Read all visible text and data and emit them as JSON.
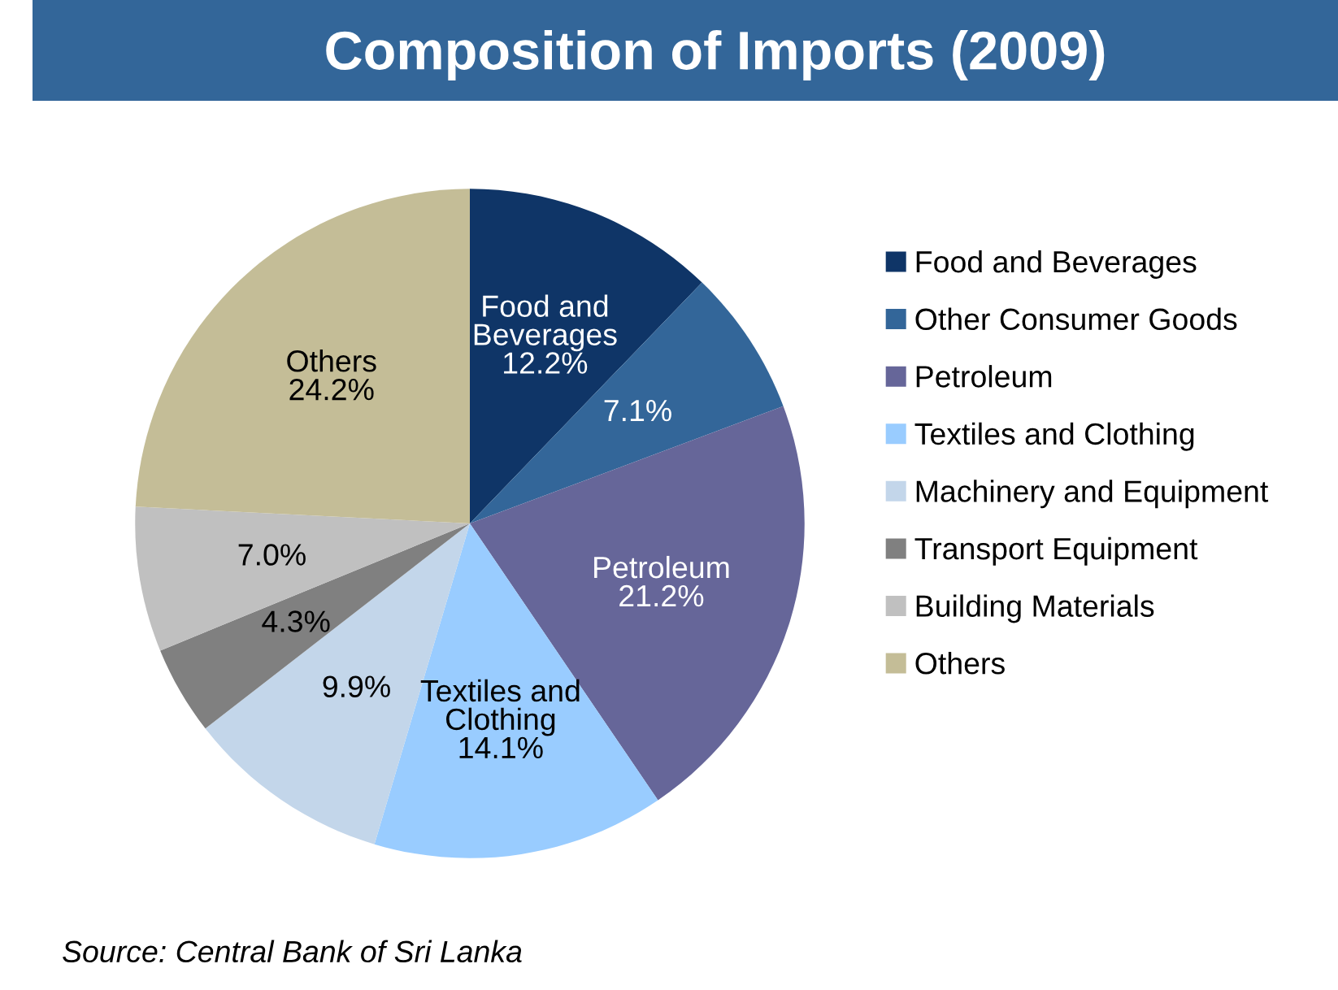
{
  "chart_data": {
    "type": "pie",
    "title": "Composition of Imports (2009)",
    "categories": [
      "Food and Beverages",
      "Other Consumer Goods",
      "Petroleum",
      "Textiles and Clothing",
      "Machinery and Equipment",
      "Transport Equipment",
      "Building Materials",
      "Others"
    ],
    "values": [
      12.2,
      7.1,
      21.2,
      14.1,
      9.9,
      4.3,
      7.0,
      24.2
    ],
    "colors": [
      "#0f3567",
      "#336699",
      "#666699",
      "#99ccff",
      "#c3d6ea",
      "#808080",
      "#c0c0c0",
      "#c4bd97"
    ],
    "value_labels": [
      "Food and\nBeverages\n12.2%",
      "7.1%",
      "Petroleum\n21.2%",
      "Textiles and\nClothing\n14.1%",
      "9.9%",
      "4.3%",
      "7.0%",
      "Others\n24.2%"
    ],
    "legend": "right",
    "annotations": [
      "Source: Central Bank of Sri Lanka"
    ]
  }
}
